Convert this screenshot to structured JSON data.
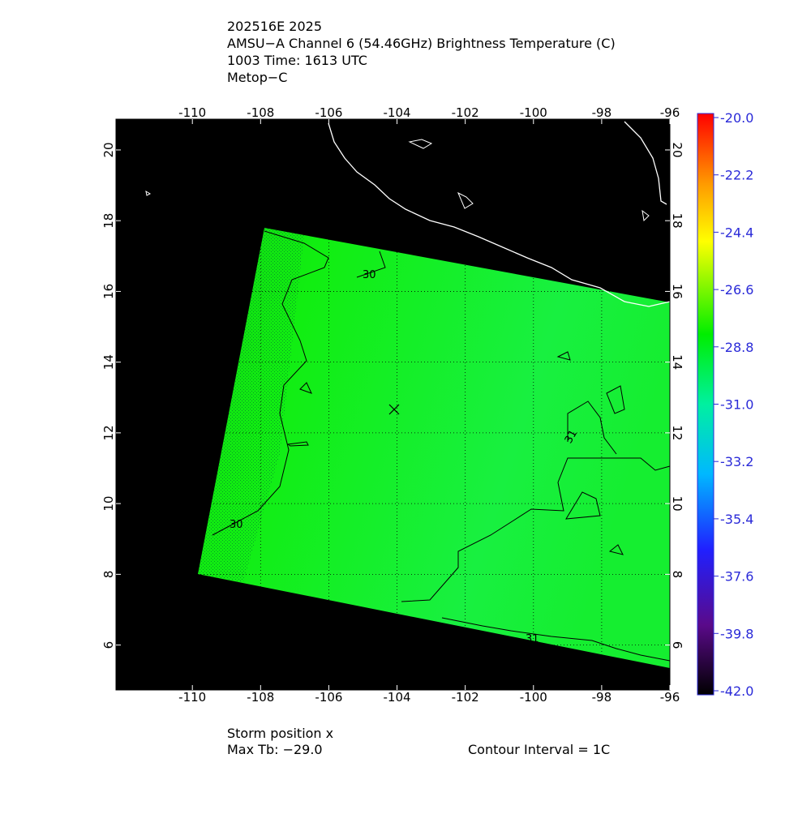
{
  "header": {
    "lines": [
      "202516E 2025",
      "AMSU−A Channel 6 (54.46GHz) Brightness Temperature (C)",
      "1003 Time: 1613 UTC",
      "Metop−C"
    ]
  },
  "map": {
    "lonlim": [
      -112.24,
      -96
    ],
    "latlim": [
      4.73,
      20.87
    ],
    "lonticks": [
      -110,
      -108,
      -106,
      -104,
      -102,
      -100,
      -98,
      -96
    ],
    "latticks": [
      6,
      8,
      10,
      12,
      14,
      16,
      18,
      20
    ],
    "contour_labels": [
      "30",
      "30",
      "31",
      "31"
    ]
  },
  "colorbar": {
    "lim": [
      -42,
      -20
    ],
    "ticks": [
      {
        "value": -20,
        "label": "-20.0"
      },
      {
        "value": -22.2,
        "label": "-22.2"
      },
      {
        "value": -24.4,
        "label": "-24.4"
      },
      {
        "value": -26.6,
        "label": "-26.6"
      },
      {
        "value": -28.8,
        "label": "-28.8"
      },
      {
        "value": -31,
        "label": "-31.0"
      },
      {
        "value": -33.2,
        "label": "-33.2"
      },
      {
        "value": -35.4,
        "label": "-35.4"
      },
      {
        "value": -37.6,
        "label": "-37.6"
      },
      {
        "value": -39.8,
        "label": "-39.8"
      },
      {
        "value": -42,
        "label": "-42.0"
      }
    ]
  },
  "footer": {
    "storm": "Storm position x",
    "max_tb": "Max Tb: −29.0",
    "interval": "Contour Interval = 1C"
  }
}
